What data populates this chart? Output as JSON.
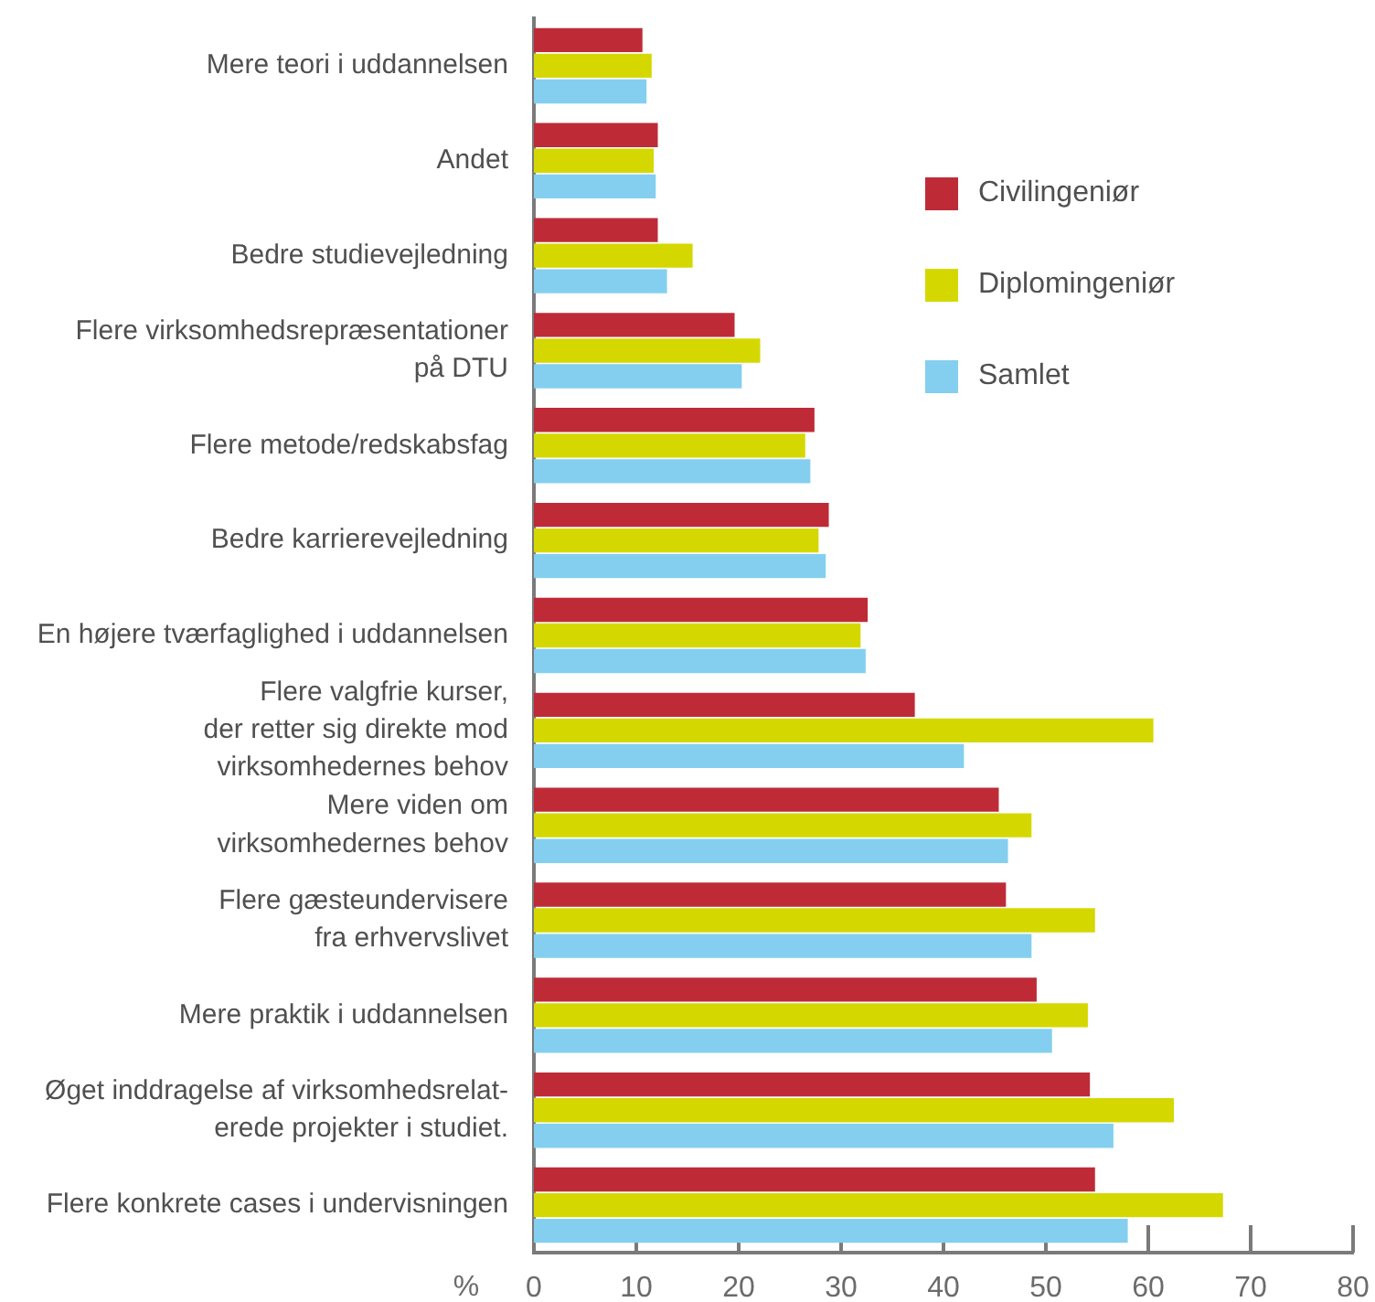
{
  "chart_data": {
    "type": "bar",
    "orientation": "horizontal",
    "categories": [
      "Mere teori i uddannelsen",
      "Andet",
      "Bedre studievejledning",
      "Flere virksomhedsrepræsentationer\npå DTU",
      "Flere metode/redskabsfag",
      "Bedre karrierevejledning",
      "En højere tværfaglighed i uddannelsen",
      "Flere valgfrie kurser,\nder retter sig direkte mod\nvirksomhedernes behov",
      "Mere viden om\nvirksomhedernes behov",
      "Flere gæsteundervisere\nfra erhvervslivet",
      "Mere praktik i uddannelsen",
      "Øget inddragelse af virksomhedsrelat-\nerede projekter i studiet.",
      "Flere konkrete cases i undervisningen"
    ],
    "series": [
      {
        "name": "Civilingeniør",
        "color": "#be2b37",
        "values": [
          10.6,
          12.1,
          12.1,
          19.6,
          27.4,
          28.8,
          32.6,
          37.2,
          45.4,
          46.1,
          49.1,
          54.3,
          54.8
        ]
      },
      {
        "name": "Diplomingeniør",
        "color": "#d5d800",
        "values": [
          11.5,
          11.7,
          15.5,
          22.1,
          26.5,
          27.8,
          31.9,
          60.5,
          48.6,
          54.8,
          54.1,
          62.5,
          67.3
        ]
      },
      {
        "name": "Samlet",
        "color": "#84cfef",
        "values": [
          11.0,
          11.9,
          13.0,
          20.3,
          27.0,
          28.5,
          32.4,
          42.0,
          46.3,
          48.6,
          50.6,
          56.6,
          58.0
        ]
      }
    ],
    "xlabel": "%",
    "xlim": [
      0,
      80
    ],
    "xticks": [
      0,
      10,
      20,
      30,
      40,
      50,
      60,
      70,
      80
    ],
    "grid": false,
    "legend": "top right"
  }
}
